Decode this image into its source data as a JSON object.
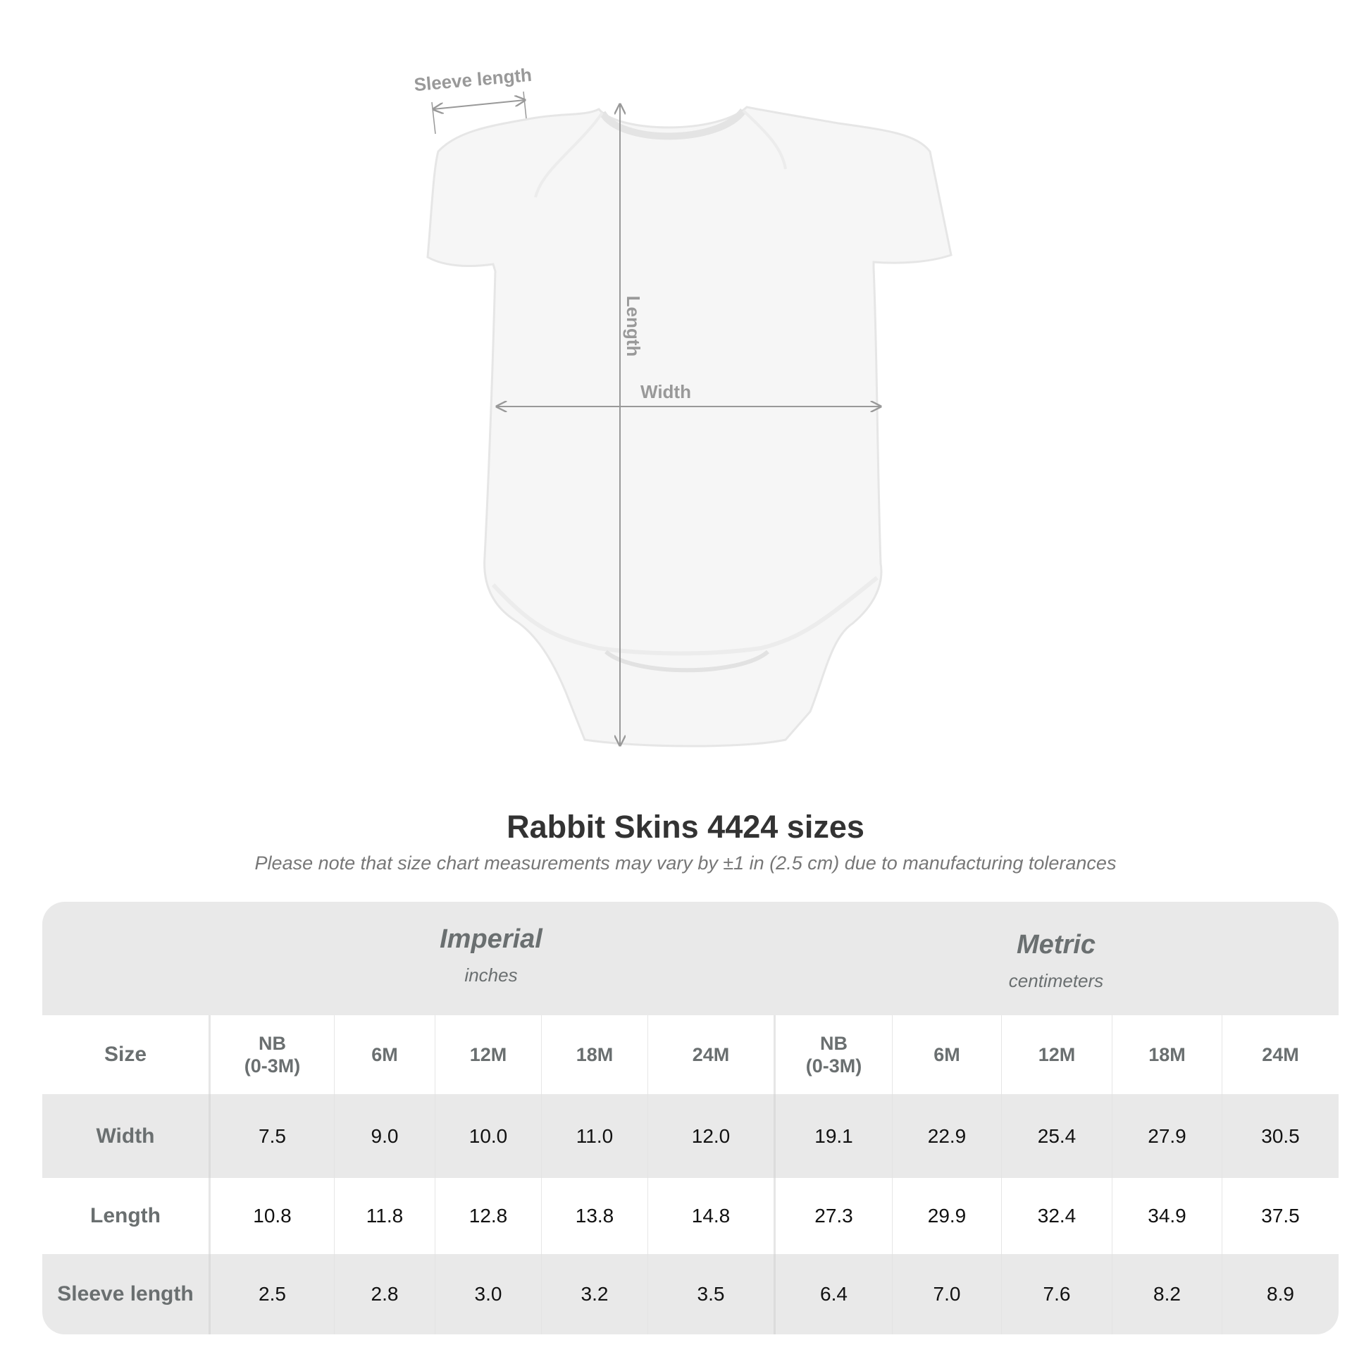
{
  "diagram": {
    "labels": {
      "sleeve": "Sleeve length",
      "length": "Length",
      "width": "Width"
    }
  },
  "title": "Rabbit Skins 4424 sizes",
  "subtitle": "Please note that size chart measurements may vary by ±1 in (2.5 cm) due to manufacturing tolerances",
  "table": {
    "groups": [
      {
        "name": "Imperial",
        "unit": "inches"
      },
      {
        "name": "Metric",
        "unit": "centimeters"
      }
    ],
    "size_label": "Size",
    "sizes": [
      "NB\n(0-3M)",
      "6M",
      "12M",
      "18M",
      "24M",
      "NB\n(0-3M)",
      "6M",
      "12M",
      "18M",
      "24M"
    ],
    "rows": [
      {
        "label": "Width",
        "values": [
          "7.5",
          "9.0",
          "10.0",
          "11.0",
          "12.0",
          "19.1",
          "22.9",
          "25.4",
          "27.9",
          "30.5"
        ]
      },
      {
        "label": "Length",
        "values": [
          "10.8",
          "11.8",
          "12.8",
          "13.8",
          "14.8",
          "27.3",
          "29.9",
          "32.4",
          "34.9",
          "37.5"
        ]
      },
      {
        "label": "Sleeve length",
        "values": [
          "2.5",
          "2.8",
          "3.0",
          "3.2",
          "3.5",
          "6.4",
          "7.0",
          "7.6",
          "8.2",
          "8.9"
        ]
      }
    ]
  }
}
